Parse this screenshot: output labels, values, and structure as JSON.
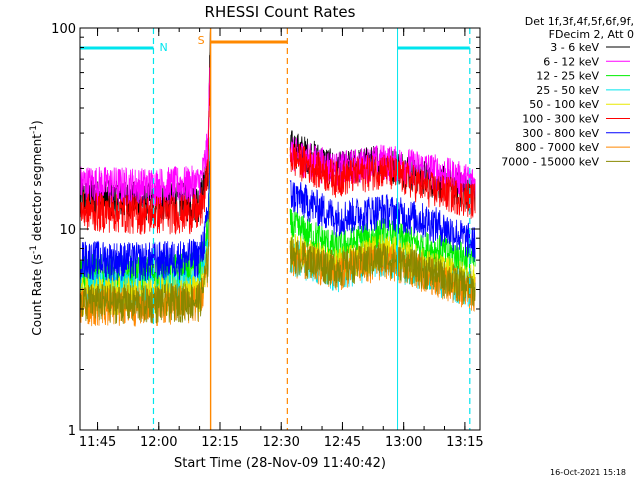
{
  "chart_data": {
    "type": "line",
    "title": "RHESSI Count Rates",
    "xlabel": "Start Time (28-Nov-09 11:40:42)",
    "ylabel_main": "Count Rate (s",
    "ylabel_sup1": "-1",
    "ylabel_mid": " detector segment",
    "ylabel_sup2": "-1",
    "ylabel_end": ")",
    "x_unit": "minutes since 11:40:42",
    "xlim": [
      0,
      98
    ],
    "ylim": [
      1,
      100
    ],
    "yscale": "log",
    "x_ticks": [
      {
        "t": 4.3,
        "label": "11:45"
      },
      {
        "t": 19.3,
        "label": "12:00"
      },
      {
        "t": 34.3,
        "label": "12:15"
      },
      {
        "t": 49.3,
        "label": "12:30"
      },
      {
        "t": 64.3,
        "label": "12:45"
      },
      {
        "t": 79.3,
        "label": "13:00"
      },
      {
        "t": 94.3,
        "label": "13:15"
      }
    ],
    "y_ticks": [
      {
        "v": 1,
        "label": "1"
      },
      {
        "v": 10,
        "label": "10"
      },
      {
        "v": 100,
        "label": "100"
      }
    ],
    "legend_header": [
      "Det 1f,3f,4f,5f,6f,9f,",
      "FDecim 2, Att 0"
    ],
    "legend_placement": "right",
    "night_label": "N",
    "saa_label": "S",
    "night_intervals": [
      [
        0,
        18.0
      ],
      [
        77.8,
        95.5
      ]
    ],
    "saa_interval": [
      32.0,
      50.8
    ],
    "night_color": "#00e5ee",
    "saa_color": "#ff8800",
    "gap": [
      32.0,
      51.5
    ],
    "series": [
      {
        "name": "3 - 6 keV",
        "color": "#000000",
        "pre": [
          14.5,
          14.0,
          13.8
        ],
        "post": [
          26.0,
          20.0,
          22.0,
          18.0,
          15.0
        ]
      },
      {
        "name": "6 - 12 keV",
        "color": "#ff00ff",
        "pre": [
          17.0,
          16.5,
          17.0
        ],
        "post": [
          24.0,
          20.0,
          22.0,
          20.0,
          17.0
        ]
      },
      {
        "name": "12 - 25 keV",
        "color": "#00ee00",
        "pre": [
          6.2,
          6.0,
          6.4
        ],
        "post": [
          10.5,
          8.0,
          9.5,
          8.0,
          7.0
        ]
      },
      {
        "name": "25 - 50 keV",
        "color": "#00e5ee",
        "pre": [
          5.2,
          5.0,
          5.3
        ],
        "post": [
          7.5,
          6.0,
          7.3,
          6.0,
          5.0
        ]
      },
      {
        "name": "50 - 100 keV",
        "color": "#e8e800",
        "pre": [
          4.8,
          4.7,
          4.9
        ],
        "post": [
          8.0,
          6.6,
          8.0,
          6.5,
          5.5
        ]
      },
      {
        "name": "100 - 300 keV",
        "color": "#ff0000",
        "pre": [
          12.5,
          12.0,
          12.2
        ],
        "post": [
          23.0,
          18.0,
          20.0,
          16.0,
          14.0
        ]
      },
      {
        "name": "300 - 800 keV",
        "color": "#0000ff",
        "pre": [
          7.2,
          7.0,
          7.4
        ],
        "post": [
          15.0,
          11.5,
          12.5,
          11.0,
          8.5
        ]
      },
      {
        "name": "800 - 7000 keV",
        "color": "#ff8800",
        "pre": [
          4.2,
          4.2,
          4.4
        ],
        "post": [
          7.3,
          6.2,
          7.0,
          6.0,
          4.8
        ]
      },
      {
        "name": "7000 - 15000 keV",
        "color": "#888800",
        "pre": [
          4.4,
          4.3,
          4.5
        ],
        "post": [
          7.6,
          6.4,
          7.3,
          6.2,
          5.0
        ]
      }
    ]
  },
  "footer": {
    "timestamp": "16-Oct-2021 15:18"
  }
}
